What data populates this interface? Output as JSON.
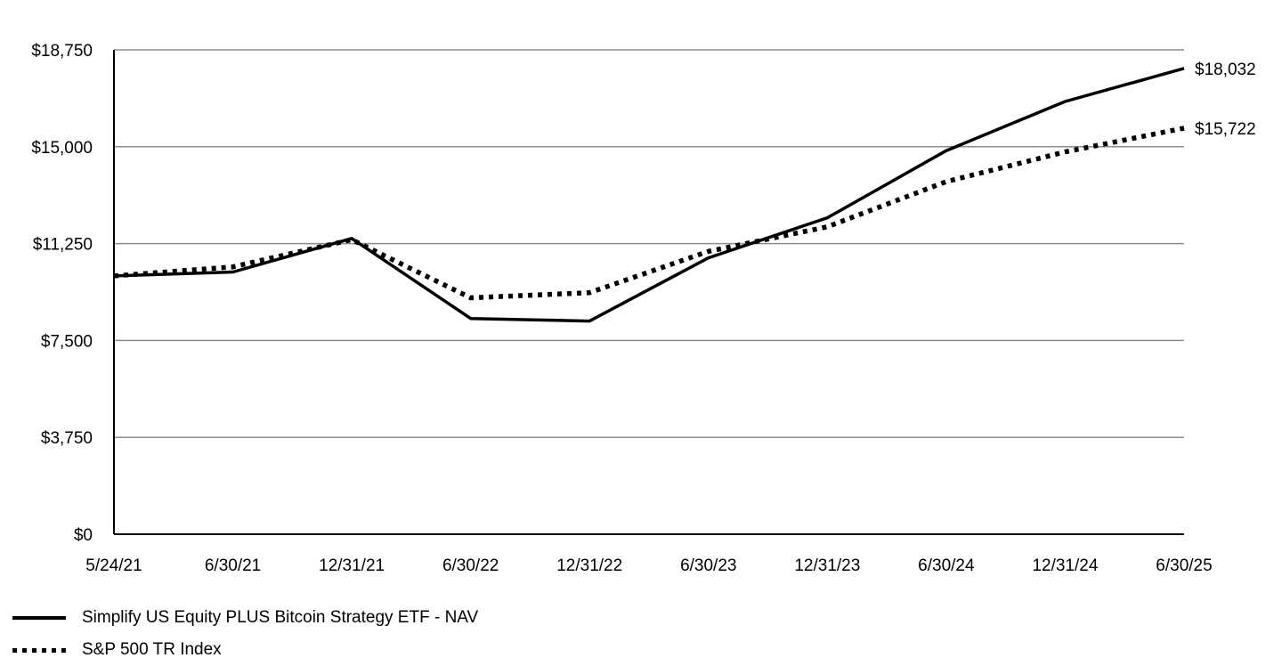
{
  "chart_data": {
    "type": "line",
    "title": "",
    "xlabel": "",
    "ylabel": "",
    "categories": [
      "5/24/21",
      "6/30/21",
      "12/31/21",
      "6/30/22",
      "12/31/22",
      "6/30/23",
      "12/31/23",
      "6/30/24",
      "12/31/24",
      "6/30/25"
    ],
    "y_ticks": [
      "$0",
      "$3,750",
      "$7,500",
      "$11,250",
      "$15,000",
      "$18,750"
    ],
    "y_tick_values": [
      0,
      3750,
      7500,
      11250,
      15000,
      18750
    ],
    "ylim": [
      0,
      18750
    ],
    "grid": true,
    "series": [
      {
        "name": "Simplify US Equity PLUS Bitcoin Strategy ETF - NAV",
        "style": "solid",
        "color": "#000000",
        "values": [
          10000,
          10150,
          11450,
          8350,
          8250,
          10700,
          12250,
          14850,
          16750,
          18032
        ],
        "end_label": "$18,032"
      },
      {
        "name": "S&P 500 TR Index",
        "style": "dotted",
        "color": "#000000",
        "values": [
          10000,
          10350,
          11400,
          9150,
          9350,
          10950,
          11900,
          13650,
          14800,
          15722
        ],
        "end_label": "$15,722"
      }
    ],
    "legend_placement": "bottom-left"
  }
}
